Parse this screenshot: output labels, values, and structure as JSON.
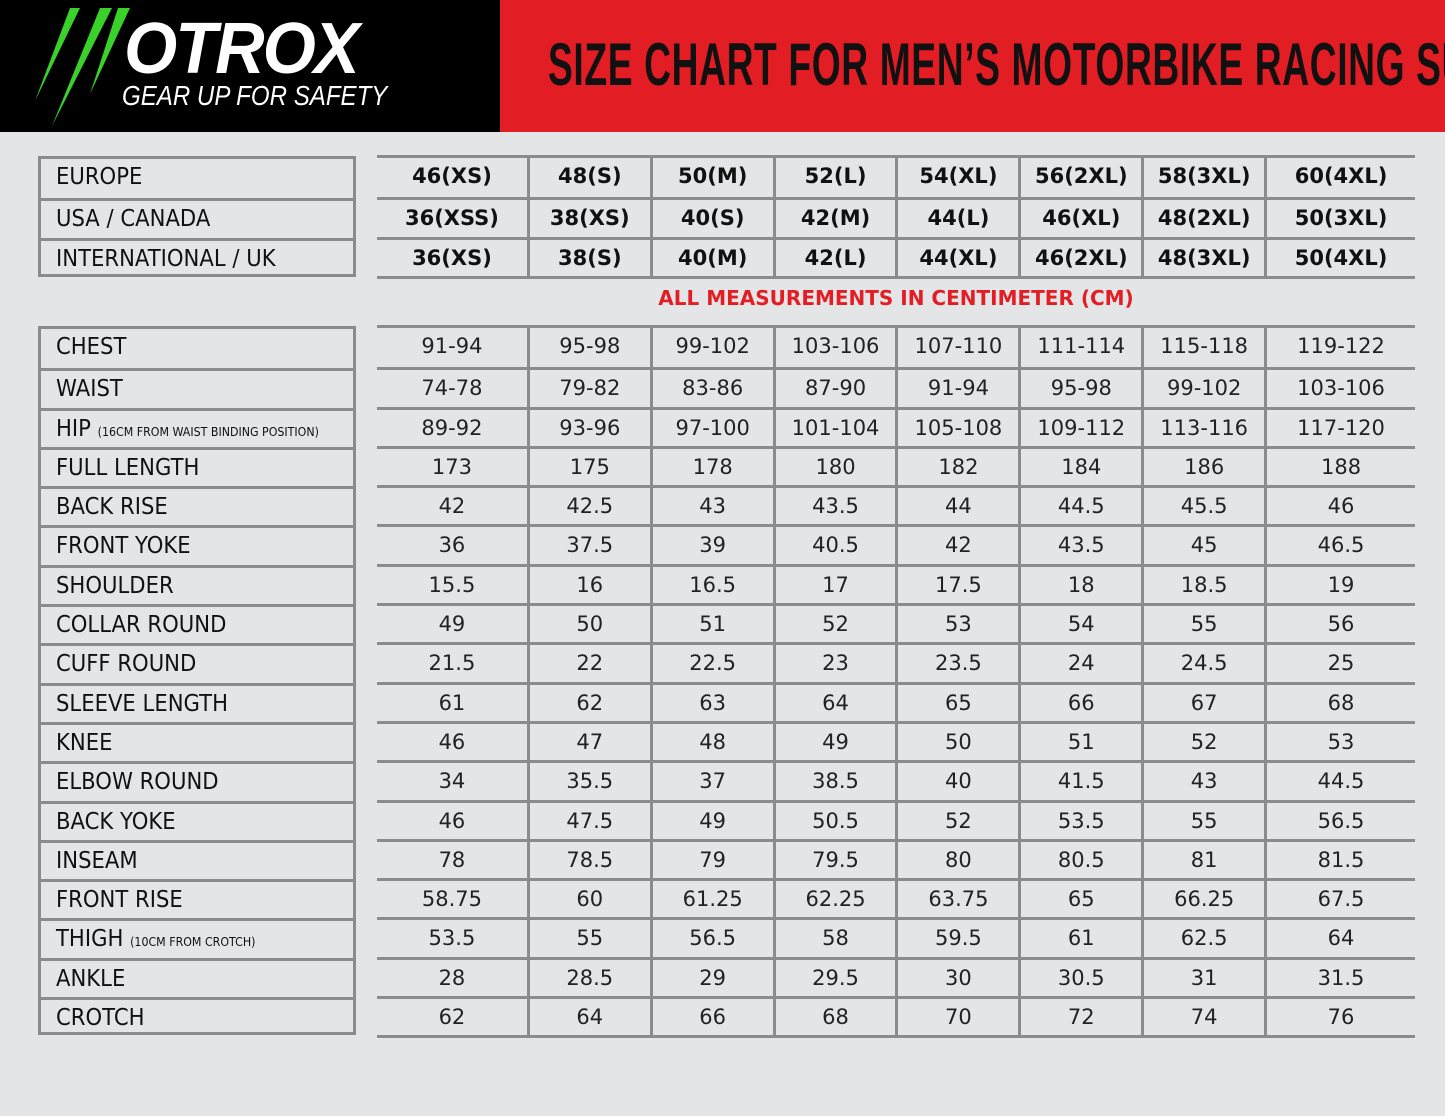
{
  "brand": {
    "logo_text": "OTROX",
    "tagline": "GEAR UP FOR SAFETY",
    "colors": {
      "green": "#39d12a",
      "red": "#e21d24",
      "black": "#000000"
    }
  },
  "title": "SIZE CHART FOR MEN’S MOTORBIKE RACING SUIT",
  "note": "ALL MEASUREMENTS IN CENTIMETER (CM)",
  "sizes": [
    {
      "label": "EUROPE",
      "values": [
        "46(XS)",
        "48(S)",
        "50(M)",
        "52(L)",
        "54(XL)",
        "56(2XL)",
        "58(3XL)",
        "60(4XL)"
      ]
    },
    {
      "label": "USA / CANADA",
      "values": [
        "36(XSS)",
        "38(XS)",
        "40(S)",
        "42(M)",
        "44(L)",
        "46(XL)",
        "48(2XL)",
        "50(3XL)"
      ]
    },
    {
      "label": "INTERNATIONAL / UK",
      "values": [
        "36(XS)",
        "38(S)",
        "40(M)",
        "42(L)",
        "44(XL)",
        "46(2XL)",
        "48(3XL)",
        "50(4XL)"
      ]
    }
  ],
  "measurements": [
    {
      "label": "CHEST",
      "values": [
        "91-94",
        "95-98",
        "99-102",
        "103-106",
        "107-110",
        "111-114",
        "115-118",
        "119-122"
      ]
    },
    {
      "label": "WAIST",
      "values": [
        "74-78",
        "79-82",
        "83-86",
        "87-90",
        "91-94",
        "95-98",
        "99-102",
        "103-106"
      ]
    },
    {
      "label": "HIP",
      "sublabel": "(16CM FROM WAIST BINDING POSITION)",
      "values": [
        "89-92",
        "93-96",
        "97-100",
        "101-104",
        "105-108",
        "109-112",
        "113-116",
        "117-120"
      ]
    },
    {
      "label": "FULL LENGTH",
      "values": [
        "173",
        "175",
        "178",
        "180",
        "182",
        "184",
        "186",
        "188"
      ]
    },
    {
      "label": "BACK RISE",
      "values": [
        "42",
        "42.5",
        "43",
        "43.5",
        "44",
        "44.5",
        "45.5",
        "46"
      ]
    },
    {
      "label": "FRONT YOKE",
      "values": [
        "36",
        "37.5",
        "39",
        "40.5",
        "42",
        "43.5",
        "45",
        "46.5"
      ]
    },
    {
      "label": "SHOULDER",
      "values": [
        "15.5",
        "16",
        "16.5",
        "17",
        "17.5",
        "18",
        "18.5",
        "19"
      ]
    },
    {
      "label": "COLLAR ROUND",
      "values": [
        "49",
        "50",
        "51",
        "52",
        "53",
        "54",
        "55",
        "56"
      ]
    },
    {
      "label": "CUFF ROUND",
      "values": [
        "21.5",
        "22",
        "22.5",
        "23",
        "23.5",
        "24",
        "24.5",
        "25"
      ]
    },
    {
      "label": "SLEEVE LENGTH",
      "values": [
        "61",
        "62",
        "63",
        "64",
        "65",
        "66",
        "67",
        "68"
      ]
    },
    {
      "label": "KNEE",
      "values": [
        "46",
        "47",
        "48",
        "49",
        "50",
        "51",
        "52",
        "53"
      ]
    },
    {
      "label": "ELBOW ROUND",
      "values": [
        "34",
        "35.5",
        "37",
        "38.5",
        "40",
        "41.5",
        "43",
        "44.5"
      ]
    },
    {
      "label": "BACK YOKE",
      "values": [
        "46",
        "47.5",
        "49",
        "50.5",
        "52",
        "53.5",
        "55",
        "56.5"
      ]
    },
    {
      "label": "INSEAM",
      "values": [
        "78",
        "78.5",
        "79",
        "79.5",
        "80",
        "80.5",
        "81",
        "81.5"
      ]
    },
    {
      "label": "FRONT RISE",
      "values": [
        "58.75",
        "60",
        "61.25",
        "62.25",
        "63.75",
        "65",
        "66.25",
        "67.5"
      ]
    },
    {
      "label": "THIGH",
      "sublabel": "(10CM FROM CROTCH)",
      "values": [
        "53.5",
        "55",
        "56.5",
        "58",
        "59.5",
        "61",
        "62.5",
        "64"
      ]
    },
    {
      "label": "ANKLE",
      "values": [
        "28",
        "28.5",
        "29",
        "29.5",
        "30",
        "30.5",
        "31",
        "31.5"
      ]
    },
    {
      "label": "CROTCH",
      "values": [
        "62",
        "64",
        "66",
        "68",
        "70",
        "72",
        "74",
        "76"
      ]
    }
  ]
}
